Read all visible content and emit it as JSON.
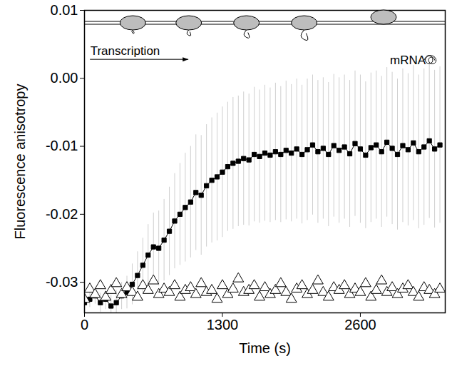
{
  "chart_data": {
    "type": "scatter",
    "x_label": "Time (s)",
    "y_label": "Fluorescence anisotropy",
    "xlim": [
      0,
      3400
    ],
    "ylim": [
      -0.0345,
      0.01
    ],
    "xticks": [
      0,
      1300,
      2600
    ],
    "yticks": [
      0.01,
      {
        "value": 0,
        "label": "0.00"
      },
      -0.01,
      -0.02,
      -0.03
    ],
    "x": [
      0,
      50,
      100,
      150,
      200,
      250,
      300,
      350,
      400,
      450,
      500,
      550,
      600,
      650,
      700,
      750,
      800,
      850,
      900,
      950,
      1000,
      1050,
      1100,
      1150,
      1200,
      1250,
      1300,
      1350,
      1400,
      1450,
      1500,
      1550,
      1600,
      1650,
      1700,
      1750,
      1800,
      1850,
      1900,
      1950,
      2000,
      2050,
      2100,
      2150,
      2200,
      2250,
      2300,
      2350,
      2400,
      2450,
      2500,
      2550,
      2600,
      2650,
      2700,
      2750,
      2800,
      2850,
      2900,
      2950,
      3000,
      3050,
      3100,
      3150,
      3200,
      3250,
      3300,
      3350
    ],
    "series": [
      {
        "color": "#000000",
        "marker": "square",
        "line_style": "solid",
        "values": [
          -0.033,
          -0.0325,
          -0.032,
          -0.033,
          -0.0325,
          -0.0335,
          -0.033,
          -0.032,
          -0.0315,
          -0.0303,
          -0.029,
          -0.0275,
          -0.026,
          -0.0248,
          -0.025,
          -0.0238,
          -0.0225,
          -0.021,
          -0.02,
          -0.019,
          -0.0182,
          -0.0168,
          -0.0172,
          -0.0158,
          -0.015,
          -0.0145,
          -0.0138,
          -0.013,
          -0.0125,
          -0.0122,
          -0.0118,
          -0.012,
          -0.0112,
          -0.0115,
          -0.011,
          -0.0113,
          -0.0108,
          -0.0112,
          -0.0106,
          -0.011,
          -0.0104,
          -0.0112,
          -0.0105,
          -0.0098,
          -0.0108,
          -0.0103,
          -0.0112,
          -0.0099,
          -0.0106,
          -0.0101,
          -0.0111,
          -0.0096,
          -0.0104,
          -0.0113,
          -0.0102,
          -0.0098,
          -0.0108,
          -0.0094,
          -0.0103,
          -0.0112,
          -0.0099,
          -0.0105,
          -0.0095,
          -0.0108,
          -0.0101,
          -0.0092,
          -0.0104,
          -0.0098
        ],
        "errors": [
          0.001,
          0.0012,
          0.0012,
          0.0014,
          0.0015,
          0.0016,
          0.0018,
          0.002,
          0.0024,
          0.003,
          0.0035,
          0.004,
          0.0045,
          0.005,
          0.0055,
          0.006,
          0.0065,
          0.007,
          0.0075,
          0.008,
          0.0082,
          0.0085,
          0.0088,
          0.009,
          0.0092,
          0.0094,
          0.0096,
          0.0095,
          0.0097,
          0.0096,
          0.0098,
          0.0097,
          0.0099,
          0.0098,
          0.01,
          0.0099,
          0.0101,
          0.01,
          0.0102,
          0.0101,
          0.0103,
          0.0102,
          0.0104,
          0.0103,
          0.0105,
          0.0104,
          0.0106,
          0.0105,
          0.0107,
          0.0106,
          0.0108,
          0.0107,
          0.0109,
          0.0108,
          0.011,
          0.0109,
          0.0111,
          0.011,
          0.0112,
          0.0111,
          0.0113,
          0.0112,
          0.0114,
          0.0113,
          0.0115,
          0.0114,
          0.0116,
          0.0115
        ]
      },
      {
        "color": "#000000",
        "marker": "triangle-open",
        "values": [
          -0.0325,
          -0.031,
          -0.0318,
          -0.0305,
          -0.0322,
          -0.0312,
          -0.0302,
          -0.0318,
          -0.0308,
          -0.0315,
          -0.0322,
          -0.0305,
          -0.0312,
          -0.0298,
          -0.0318,
          -0.031,
          -0.0315,
          -0.0305,
          -0.0322,
          -0.0312,
          -0.0308,
          -0.0318,
          -0.0302,
          -0.0315,
          -0.0312,
          -0.0325,
          -0.0305,
          -0.0318,
          -0.031,
          -0.0295,
          -0.0315,
          -0.0312,
          -0.0305,
          -0.0322,
          -0.0308,
          -0.0318,
          -0.0312,
          -0.0302,
          -0.0315,
          -0.0325,
          -0.031,
          -0.0305,
          -0.0318,
          -0.0312,
          -0.0298,
          -0.0315,
          -0.0322,
          -0.0308,
          -0.0312,
          -0.0305,
          -0.0318,
          -0.031,
          -0.0315,
          -0.0302,
          -0.0322,
          -0.0312,
          -0.0298,
          -0.0315,
          -0.0308,
          -0.0318,
          -0.031,
          -0.0305,
          -0.0315,
          -0.0322,
          -0.0308,
          -0.0312,
          -0.0318,
          -0.031
        ]
      }
    ],
    "annotations": [
      {
        "text": "Transcription",
        "x": 55,
        "y": 0.004
      },
      {
        "text": "mRNA",
        "x": 2880,
        "y": 0.0026
      }
    ]
  }
}
